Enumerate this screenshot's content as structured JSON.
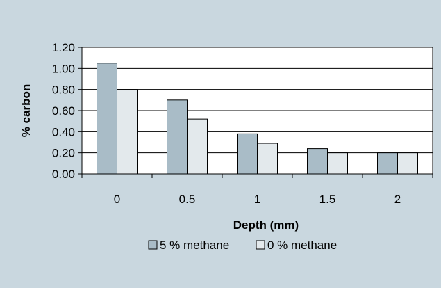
{
  "chart_data": {
    "type": "bar",
    "categories": [
      "0",
      "0.5",
      "1",
      "1.5",
      "2"
    ],
    "series": [
      {
        "name": "5 % methane",
        "values": [
          1.05,
          0.7,
          0.38,
          0.24,
          0.2
        ],
        "color": "#a9bcc7"
      },
      {
        "name": "0 % methane",
        "values": [
          0.8,
          0.52,
          0.29,
          0.2,
          0.2
        ],
        "color": "#e3e9ec"
      }
    ],
    "xlabel": "Depth (mm)",
    "ylabel": "% carbon",
    "ylim": [
      0,
      1.2
    ],
    "yticks": [
      "0.00",
      "0.20",
      "0.40",
      "0.60",
      "0.80",
      "1.00",
      "1.20"
    ],
    "grid": true,
    "legend_position": "bottom",
    "background_color": "#c9d7df",
    "plot_background": "#ffffff"
  }
}
